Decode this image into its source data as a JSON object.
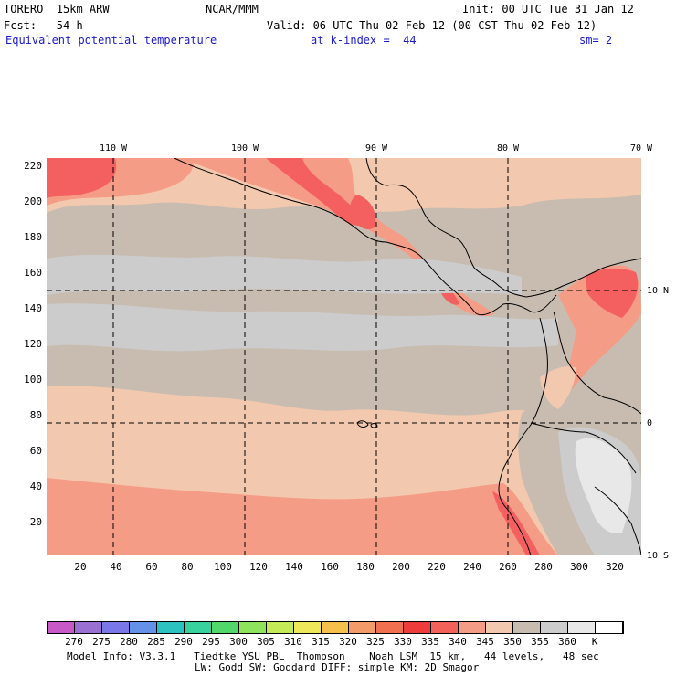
{
  "header": {
    "model": "TORERO  15km ARW",
    "center": "NCAR/MMM",
    "init": "Init: 00 UTC Tue 31 Jan 12",
    "fcst": "Fcst:   54 h",
    "valid": "Valid: 06 UTC Thu 02 Feb 12 (00 CST Thu 02 Feb 12)",
    "field": "Equivalent potential temperature",
    "level": "at k-index =  44",
    "smooth": "sm= 2"
  },
  "map": {
    "y_ticks": [
      "220",
      "200",
      "180",
      "160",
      "140",
      "120",
      "100",
      "80",
      "60",
      "40",
      "20"
    ],
    "x_ticks": [
      "20",
      "40",
      "60",
      "80",
      "100",
      "120",
      "140",
      "160",
      "180",
      "200",
      "220",
      "240",
      "260",
      "280",
      "300",
      "320"
    ],
    "lon_labels": [
      "110 W",
      "100 W",
      "90 W",
      "80 W",
      "70 W"
    ],
    "lat_labels": [
      "10 N",
      "0",
      "10 S"
    ],
    "colors": {
      "ocean_main": "#c8bcb0",
      "cool": "#cccccc",
      "warm": "#f2c8ae",
      "warmer": "#f59c86",
      "hot": "#f46060",
      "hottest": "#ee3c3c",
      "coldest": "#e8e8e8"
    }
  },
  "colorbar": {
    "colors": [
      "#c85ac8",
      "#9a70d2",
      "#7a78e8",
      "#6492e8",
      "#2cc2c0",
      "#38d29e",
      "#52d86a",
      "#8ee45a",
      "#c4ea58",
      "#eee85a",
      "#f6c04c",
      "#f39c6a",
      "#f07050",
      "#ee3c3c",
      "#f4605a",
      "#f59c86",
      "#f2c8ae",
      "#c8bcb0",
      "#cccccc",
      "#e8e8e8",
      "#ffffff"
    ],
    "labels": [
      "270",
      "275",
      "280",
      "285",
      "290",
      "295",
      "300",
      "305",
      "310",
      "315",
      "320",
      "325",
      "330",
      "335",
      "340",
      "345",
      "350",
      "355",
      "360",
      "K"
    ]
  },
  "footer": {
    "line1": "Model Info: V3.3.1   Tiedtke YSU PBL  Thompson    Noah LSM  15 km,   44 levels,   48 sec",
    "line2": "LW: Godd SW: Goddard DIFF: simple KM: 2D Smagor"
  }
}
